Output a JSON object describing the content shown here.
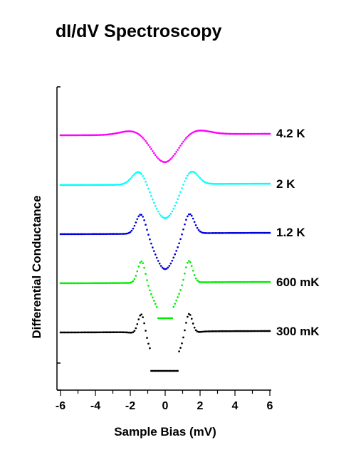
{
  "chart_data": {
    "type": "line",
    "title": "dI/dV Spectroscopy",
    "xlabel": "Sample Bias (mV)",
    "ylabel": "Differential Conductance",
    "xlim": [
      -6.1,
      6
    ],
    "x_ticks": [
      -6,
      -4,
      -2,
      0,
      2,
      4,
      6
    ],
    "grid": false,
    "series": [
      {
        "name": "4.2 K",
        "color": "#ff00ff",
        "offset": 4.0,
        "width": 0.75,
        "center": -0.02,
        "depth": 0.72,
        "peak_pos": 1.75,
        "peak_width": 0.75,
        "peak_height": 0.12,
        "x": [
          -6,
          6
        ]
      },
      {
        "name": "2 K",
        "color": "#00ffff",
        "offset": 3.0,
        "width": 0.62,
        "center": 0.0,
        "depth": 0.95,
        "peak_pos": 1.48,
        "peak_width": 0.4,
        "peak_height": 0.4,
        "x": [
          -6,
          6
        ]
      },
      {
        "name": "1.2 K",
        "color": "#0000dd",
        "offset": 2.0,
        "width": 0.55,
        "center": 0.0,
        "depth": 1.0,
        "peak_pos": 1.38,
        "peak_width": 0.28,
        "peak_height": 0.58,
        "x": [
          -6,
          6
        ]
      },
      {
        "name": "600 mK",
        "color": "#00ee00",
        "offset": 1.0,
        "width": 0.55,
        "center": 0.0,
        "depth": 1.0,
        "peak_pos": 1.35,
        "peak_width": 0.22,
        "peak_height": 0.65,
        "x": [
          -6,
          6
        ]
      },
      {
        "name": "300 mK",
        "color": "#000000",
        "offset": 0.0,
        "width": 0.7,
        "center": 0.0,
        "depth": 1.0,
        "peak_pos": 1.35,
        "peak_width": 0.2,
        "peak_height": 0.6,
        "x": [
          -6,
          6
        ]
      }
    ]
  }
}
